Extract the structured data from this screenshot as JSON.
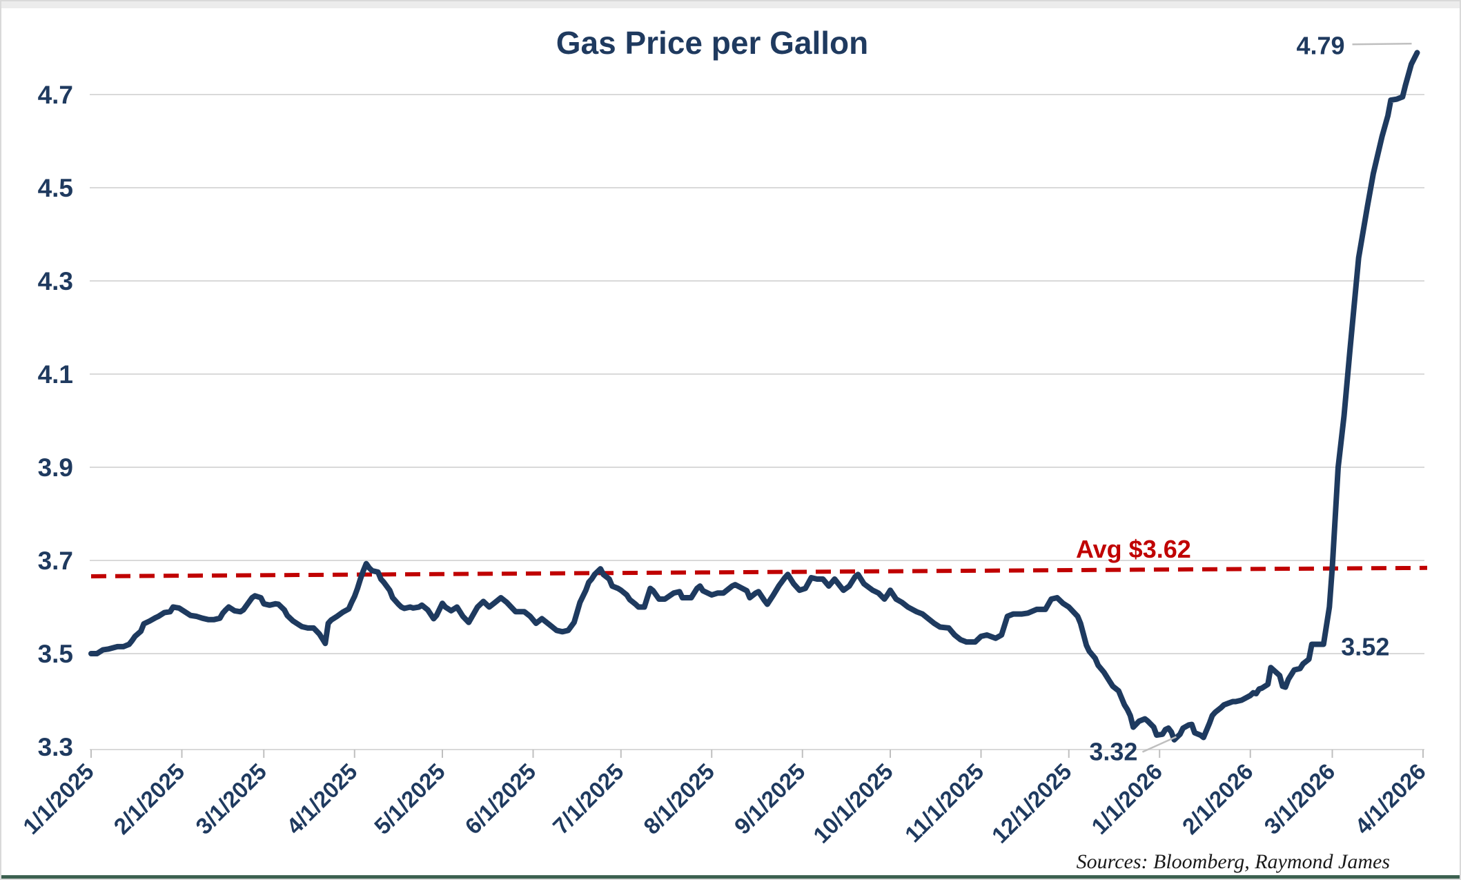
{
  "chart_data": {
    "type": "line",
    "title": "Gas Price per Gallon",
    "series_name": "Gas price per gallon (USD)",
    "source": "Sources: Bloomberg, Raymond James",
    "grid": "horizontal",
    "legend": "none",
    "ylim": [
      3.3,
      4.7
    ],
    "y_ticks": [
      "3.3",
      "3.5",
      "3.7",
      "3.9",
      "4.1",
      "4.3",
      "4.5",
      "4.7"
    ],
    "x_ticks": [
      {
        "label": "1/1/2025",
        "date": "2025-01-01"
      },
      {
        "label": "2/1/2025",
        "date": "2025-02-01"
      },
      {
        "label": "3/1/2025",
        "date": "2025-03-01"
      },
      {
        "label": "4/1/2025",
        "date": "2025-04-01"
      },
      {
        "label": "5/1/2025",
        "date": "2025-05-01"
      },
      {
        "label": "6/1/2025",
        "date": "2025-06-01"
      },
      {
        "label": "7/1/2025",
        "date": "2025-07-01"
      },
      {
        "label": "8/1/2025",
        "date": "2025-08-01"
      },
      {
        "label": "9/1/2025",
        "date": "2025-09-01"
      },
      {
        "label": "10/1/2025",
        "date": "2025-10-01"
      },
      {
        "label": "11/1/2025",
        "date": "2025-11-01"
      },
      {
        "label": "12/1/2025",
        "date": "2025-12-01"
      },
      {
        "label": "1/1/2026",
        "date": "2026-01-01"
      },
      {
        "label": "2/1/2026",
        "date": "2026-02-01"
      },
      {
        "label": "3/1/2026",
        "date": "2026-03-01"
      },
      {
        "label": "4/1/2026",
        "date": "2026-04-01"
      }
    ],
    "avg_line": {
      "label": "Avg $3.62",
      "value": 3.62,
      "draw_from_value": 3.666,
      "draw_to_value": 3.684,
      "style": "dashed"
    },
    "annotations": {
      "peak": {
        "text": "4.79",
        "date": "2026-03-30",
        "value": 4.79
      },
      "pre_surge": {
        "text": "3.52",
        "date": "2026-02-24",
        "value": 3.52
      },
      "low": {
        "text": "3.32",
        "date": "2026-01-06",
        "value": 3.32
      }
    },
    "colors": {
      "line": "#1e3a5f",
      "avg_line": "#c00000",
      "grid": "#d9d9d9",
      "axis_text": "#1f3a5f",
      "leader": "#bfbfbf",
      "source_text": "#1a1a1a",
      "bottom_bar": "#3c6150"
    },
    "points": [
      [
        "2025-01-01",
        3.5
      ],
      [
        "2025-01-03",
        3.5
      ],
      [
        "2025-01-05",
        3.508
      ],
      [
        "2025-01-07",
        3.51
      ],
      [
        "2025-01-10",
        3.515
      ],
      [
        "2025-01-12",
        3.515
      ],
      [
        "2025-01-14",
        3.52
      ],
      [
        "2025-01-15",
        3.528
      ],
      [
        "2025-01-16",
        3.537
      ],
      [
        "2025-01-18",
        3.548
      ],
      [
        "2025-01-19",
        3.564
      ],
      [
        "2025-01-21",
        3.57
      ],
      [
        "2025-01-23",
        3.577
      ],
      [
        "2025-01-24",
        3.58
      ],
      [
        "2025-01-26",
        3.588
      ],
      [
        "2025-01-28",
        3.59
      ],
      [
        "2025-01-29",
        3.6
      ],
      [
        "2025-01-31",
        3.598
      ],
      [
        "2025-02-02",
        3.59
      ],
      [
        "2025-02-04",
        3.582
      ],
      [
        "2025-02-06",
        3.58
      ],
      [
        "2025-02-08",
        3.576
      ],
      [
        "2025-02-10",
        3.573
      ],
      [
        "2025-02-12",
        3.573
      ],
      [
        "2025-02-14",
        3.576
      ],
      [
        "2025-02-15",
        3.587
      ],
      [
        "2025-02-16",
        3.594
      ],
      [
        "2025-02-17",
        3.6
      ],
      [
        "2025-02-19",
        3.592
      ],
      [
        "2025-02-21",
        3.59
      ],
      [
        "2025-02-22",
        3.594
      ],
      [
        "2025-02-25",
        3.62
      ],
      [
        "2025-02-26",
        3.624
      ],
      [
        "2025-02-28",
        3.62
      ],
      [
        "2025-03-01",
        3.607
      ],
      [
        "2025-03-03",
        3.604
      ],
      [
        "2025-03-05",
        3.607
      ],
      [
        "2025-03-06",
        3.606
      ],
      [
        "2025-03-08",
        3.594
      ],
      [
        "2025-03-09",
        3.582
      ],
      [
        "2025-03-11",
        3.57
      ],
      [
        "2025-03-13",
        3.562
      ],
      [
        "2025-03-14",
        3.558
      ],
      [
        "2025-03-16",
        3.555
      ],
      [
        "2025-03-18",
        3.555
      ],
      [
        "2025-03-20",
        3.542
      ],
      [
        "2025-03-21",
        3.532
      ],
      [
        "2025-03-22",
        3.522
      ],
      [
        "2025-03-23",
        3.565
      ],
      [
        "2025-03-24",
        3.572
      ],
      [
        "2025-03-26",
        3.58
      ],
      [
        "2025-03-28",
        3.589
      ],
      [
        "2025-03-30",
        3.596
      ],
      [
        "2025-03-31",
        3.61
      ],
      [
        "2025-04-01",
        3.623
      ],
      [
        "2025-04-02",
        3.64
      ],
      [
        "2025-04-03",
        3.66
      ],
      [
        "2025-04-04",
        3.678
      ],
      [
        "2025-04-05",
        3.693
      ],
      [
        "2025-04-06",
        3.684
      ],
      [
        "2025-04-07",
        3.678
      ],
      [
        "2025-04-09",
        3.675
      ],
      [
        "2025-04-10",
        3.66
      ],
      [
        "2025-04-11",
        3.653
      ],
      [
        "2025-04-13",
        3.636
      ],
      [
        "2025-04-14",
        3.62
      ],
      [
        "2025-04-16",
        3.606
      ],
      [
        "2025-04-17",
        3.6
      ],
      [
        "2025-04-18",
        3.597
      ],
      [
        "2025-04-20",
        3.6
      ],
      [
        "2025-04-21",
        3.598
      ],
      [
        "2025-04-23",
        3.6
      ],
      [
        "2025-04-24",
        3.604
      ],
      [
        "2025-04-26",
        3.594
      ],
      [
        "2025-04-28",
        3.575
      ],
      [
        "2025-04-29",
        3.582
      ],
      [
        "2025-05-01",
        3.608
      ],
      [
        "2025-05-02",
        3.6
      ],
      [
        "2025-05-04",
        3.592
      ],
      [
        "2025-05-06",
        3.6
      ],
      [
        "2025-05-08",
        3.58
      ],
      [
        "2025-05-10",
        3.567
      ],
      [
        "2025-05-13",
        3.6
      ],
      [
        "2025-05-15",
        3.612
      ],
      [
        "2025-05-17",
        3.6
      ],
      [
        "2025-05-19",
        3.61
      ],
      [
        "2025-05-21",
        3.62
      ],
      [
        "2025-05-23",
        3.61
      ],
      [
        "2025-05-26",
        3.59
      ],
      [
        "2025-05-29",
        3.59
      ],
      [
        "2025-05-31",
        3.58
      ],
      [
        "2025-06-02",
        3.565
      ],
      [
        "2025-06-04",
        3.575
      ],
      [
        "2025-06-07",
        3.56
      ],
      [
        "2025-06-09",
        3.55
      ],
      [
        "2025-06-11",
        3.547
      ],
      [
        "2025-06-13",
        3.55
      ],
      [
        "2025-06-15",
        3.567
      ],
      [
        "2025-06-17",
        3.61
      ],
      [
        "2025-06-19",
        3.636
      ],
      [
        "2025-06-20",
        3.653
      ],
      [
        "2025-06-21",
        3.66
      ],
      [
        "2025-06-22",
        3.67
      ],
      [
        "2025-06-24",
        3.682
      ],
      [
        "2025-06-25",
        3.67
      ],
      [
        "2025-06-27",
        3.66
      ],
      [
        "2025-06-28",
        3.645
      ],
      [
        "2025-06-30",
        3.64
      ],
      [
        "2025-07-01",
        3.636
      ],
      [
        "2025-07-03",
        3.626
      ],
      [
        "2025-07-04",
        3.616
      ],
      [
        "2025-07-06",
        3.606
      ],
      [
        "2025-07-07",
        3.6
      ],
      [
        "2025-07-09",
        3.6
      ],
      [
        "2025-07-10",
        3.62
      ],
      [
        "2025-07-11",
        3.64
      ],
      [
        "2025-07-12",
        3.635
      ],
      [
        "2025-07-14",
        3.617
      ],
      [
        "2025-07-16",
        3.617
      ],
      [
        "2025-07-19",
        3.63
      ],
      [
        "2025-07-21",
        3.633
      ],
      [
        "2025-07-22",
        3.62
      ],
      [
        "2025-07-25",
        3.62
      ],
      [
        "2025-07-27",
        3.64
      ],
      [
        "2025-07-28",
        3.645
      ],
      [
        "2025-07-29",
        3.635
      ],
      [
        "2025-08-01",
        3.626
      ],
      [
        "2025-08-03",
        3.63
      ],
      [
        "2025-08-05",
        3.63
      ],
      [
        "2025-08-08",
        3.645
      ],
      [
        "2025-08-09",
        3.648
      ],
      [
        "2025-08-13",
        3.635
      ],
      [
        "2025-08-14",
        3.62
      ],
      [
        "2025-08-16",
        3.63
      ],
      [
        "2025-08-17",
        3.633
      ],
      [
        "2025-08-19",
        3.614
      ],
      [
        "2025-08-20",
        3.606
      ],
      [
        "2025-08-22",
        3.625
      ],
      [
        "2025-08-24",
        3.646
      ],
      [
        "2025-08-26",
        3.663
      ],
      [
        "2025-08-27",
        3.67
      ],
      [
        "2025-08-29",
        3.65
      ],
      [
        "2025-08-31",
        3.636
      ],
      [
        "2025-09-02",
        3.64
      ],
      [
        "2025-09-04",
        3.663
      ],
      [
        "2025-09-06",
        3.66
      ],
      [
        "2025-09-08",
        3.66
      ],
      [
        "2025-09-10",
        3.645
      ],
      [
        "2025-09-12",
        3.66
      ],
      [
        "2025-09-15",
        3.636
      ],
      [
        "2025-09-17",
        3.645
      ],
      [
        "2025-09-19",
        3.665
      ],
      [
        "2025-09-20",
        3.67
      ],
      [
        "2025-09-22",
        3.65
      ],
      [
        "2025-09-25",
        3.636
      ],
      [
        "2025-09-27",
        3.63
      ],
      [
        "2025-09-29",
        3.617
      ],
      [
        "2025-09-30",
        3.626
      ],
      [
        "2025-10-01",
        3.636
      ],
      [
        "2025-10-03",
        3.617
      ],
      [
        "2025-10-05",
        3.61
      ],
      [
        "2025-10-07",
        3.6
      ],
      [
        "2025-10-10",
        3.59
      ],
      [
        "2025-10-12",
        3.585
      ],
      [
        "2025-10-14",
        3.575
      ],
      [
        "2025-10-16",
        3.565
      ],
      [
        "2025-10-18",
        3.557
      ],
      [
        "2025-10-21",
        3.555
      ],
      [
        "2025-10-23",
        3.54
      ],
      [
        "2025-10-25",
        3.53
      ],
      [
        "2025-10-27",
        3.525
      ],
      [
        "2025-10-30",
        3.525
      ],
      [
        "2025-11-01",
        3.537
      ],
      [
        "2025-11-03",
        3.54
      ],
      [
        "2025-11-06",
        3.533
      ],
      [
        "2025-11-08",
        3.54
      ],
      [
        "2025-11-10",
        3.58
      ],
      [
        "2025-11-12",
        3.585
      ],
      [
        "2025-11-15",
        3.585
      ],
      [
        "2025-11-17",
        3.587
      ],
      [
        "2025-11-20",
        3.595
      ],
      [
        "2025-11-23",
        3.595
      ],
      [
        "2025-11-25",
        3.617
      ],
      [
        "2025-11-27",
        3.62
      ],
      [
        "2025-11-29",
        3.608
      ],
      [
        "2025-12-01",
        3.6
      ],
      [
        "2025-12-04",
        3.58
      ],
      [
        "2025-12-05",
        3.565
      ],
      [
        "2025-12-07",
        3.518
      ],
      [
        "2025-12-08",
        3.505
      ],
      [
        "2025-12-10",
        3.49
      ],
      [
        "2025-12-11",
        3.475
      ],
      [
        "2025-12-13",
        3.46
      ],
      [
        "2025-12-15",
        3.44
      ],
      [
        "2025-12-16",
        3.43
      ],
      [
        "2025-12-18",
        3.42
      ],
      [
        "2025-12-20",
        3.39
      ],
      [
        "2025-12-21",
        3.38
      ],
      [
        "2025-12-22",
        3.367
      ],
      [
        "2025-12-23",
        3.342
      ],
      [
        "2025-12-25",
        3.355
      ],
      [
        "2025-12-27",
        3.36
      ],
      [
        "2025-12-28",
        3.355
      ],
      [
        "2025-12-30",
        3.342
      ],
      [
        "2025-12-31",
        3.325
      ],
      [
        "2026-01-02",
        3.327
      ],
      [
        "2026-01-03",
        3.337
      ],
      [
        "2026-01-04",
        3.34
      ],
      [
        "2026-01-05",
        3.332
      ],
      [
        "2026-01-06",
        3.315
      ],
      [
        "2026-01-08",
        3.327
      ],
      [
        "2026-01-09",
        3.34
      ],
      [
        "2026-01-11",
        3.347
      ],
      [
        "2026-01-12",
        3.348
      ],
      [
        "2026-01-13",
        3.33
      ],
      [
        "2026-01-15",
        3.325
      ],
      [
        "2026-01-16",
        3.32
      ],
      [
        "2026-01-18",
        3.35
      ],
      [
        "2026-01-19",
        3.367
      ],
      [
        "2026-01-20",
        3.374
      ],
      [
        "2026-01-22",
        3.384
      ],
      [
        "2026-01-23",
        3.39
      ],
      [
        "2026-01-26",
        3.397
      ],
      [
        "2026-01-27",
        3.397
      ],
      [
        "2026-01-29",
        3.4
      ],
      [
        "2026-02-01",
        3.41
      ],
      [
        "2026-02-02",
        3.416
      ],
      [
        "2026-02-03",
        3.414
      ],
      [
        "2026-02-04",
        3.424
      ],
      [
        "2026-02-05",
        3.426
      ],
      [
        "2026-02-07",
        3.434
      ],
      [
        "2026-02-08",
        3.47
      ],
      [
        "2026-02-11",
        3.453
      ],
      [
        "2026-02-12",
        3.43
      ],
      [
        "2026-02-13",
        3.428
      ],
      [
        "2026-02-14",
        3.445
      ],
      [
        "2026-02-16",
        3.465
      ],
      [
        "2026-02-18",
        3.468
      ],
      [
        "2026-02-19",
        3.478
      ],
      [
        "2026-02-21",
        3.488
      ],
      [
        "2026-02-22",
        3.52
      ],
      [
        "2026-02-26",
        3.52
      ],
      [
        "2026-02-28",
        3.6
      ],
      [
        "2026-03-01",
        3.685
      ],
      [
        "2026-03-03",
        3.9
      ],
      [
        "2026-03-05",
        4.01
      ],
      [
        "2026-03-07",
        4.15
      ],
      [
        "2026-03-10",
        4.35
      ],
      [
        "2026-03-13",
        4.46
      ],
      [
        "2026-03-15",
        4.53
      ],
      [
        "2026-03-18",
        4.61
      ],
      [
        "2026-03-20",
        4.655
      ],
      [
        "2026-03-21",
        4.688
      ],
      [
        "2026-03-23",
        4.69
      ],
      [
        "2026-03-25",
        4.695
      ],
      [
        "2026-03-26",
        4.72
      ],
      [
        "2026-03-28",
        4.765
      ],
      [
        "2026-03-30",
        4.79
      ]
    ]
  }
}
